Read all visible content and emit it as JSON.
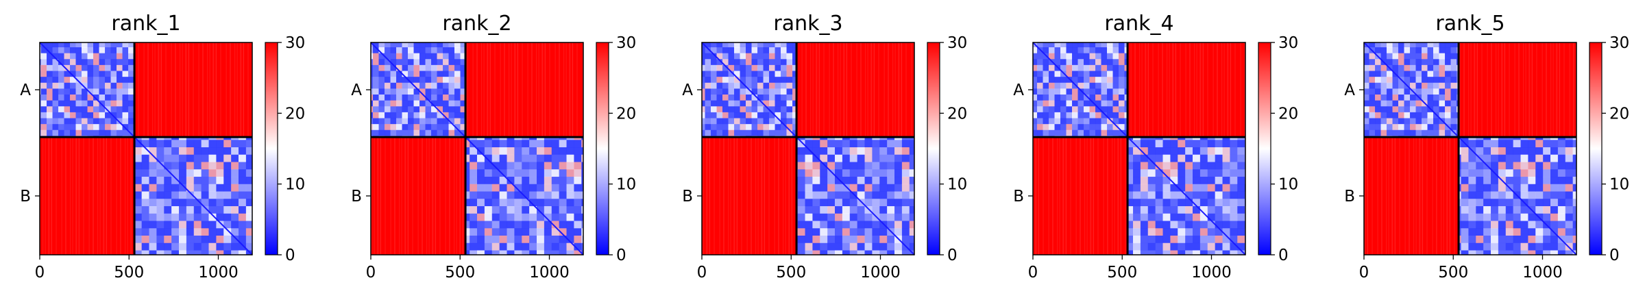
{
  "chart_data": [
    {
      "type": "heatmap",
      "title": "rank_1",
      "chains": [
        "A",
        "B"
      ],
      "chain_boundary": 530,
      "x_range": [
        0,
        1190
      ],
      "x_ticks": [
        0,
        500,
        1000
      ],
      "x_tick_labels": [
        "0",
        "500",
        "1000"
      ],
      "colorbar": {
        "min": 0,
        "max": 30,
        "ticks": [
          0,
          10,
          20,
          30
        ],
        "tick_labels": [
          "0",
          "10",
          "20",
          "30"
        ],
        "colormap": "bwr",
        "low_color": "#0000ff",
        "mid_color": "#ffffff",
        "high_color": "#ff0000"
      }
    },
    {
      "type": "heatmap",
      "title": "rank_2",
      "chains": [
        "A",
        "B"
      ],
      "chain_boundary": 530,
      "x_range": [
        0,
        1190
      ],
      "x_ticks": [
        0,
        500,
        1000
      ],
      "x_tick_labels": [
        "0",
        "500",
        "1000"
      ],
      "colorbar": {
        "min": 0,
        "max": 30,
        "ticks": [
          0,
          10,
          20,
          30
        ],
        "tick_labels": [
          "0",
          "10",
          "20",
          "30"
        ],
        "colormap": "bwr",
        "low_color": "#0000ff",
        "mid_color": "#ffffff",
        "high_color": "#ff0000"
      }
    },
    {
      "type": "heatmap",
      "title": "rank_3",
      "chains": [
        "A",
        "B"
      ],
      "chain_boundary": 530,
      "x_range": [
        0,
        1190
      ],
      "x_ticks": [
        0,
        500,
        1000
      ],
      "x_tick_labels": [
        "0",
        "500",
        "1000"
      ],
      "colorbar": {
        "min": 0,
        "max": 30,
        "ticks": [
          0,
          10,
          20,
          30
        ],
        "tick_labels": [
          "0",
          "10",
          "20",
          "30"
        ],
        "colormap": "bwr",
        "low_color": "#0000ff",
        "mid_color": "#ffffff",
        "high_color": "#ff0000"
      }
    },
    {
      "type": "heatmap",
      "title": "rank_4",
      "chains": [
        "A",
        "B"
      ],
      "chain_boundary": 530,
      "x_range": [
        0,
        1190
      ],
      "x_ticks": [
        0,
        500,
        1000
      ],
      "x_tick_labels": [
        "0",
        "500",
        "1000"
      ],
      "colorbar": {
        "min": 0,
        "max": 30,
        "ticks": [
          0,
          10,
          20,
          30
        ],
        "tick_labels": [
          "0",
          "10",
          "20",
          "30"
        ],
        "colormap": "bwr",
        "low_color": "#0000ff",
        "mid_color": "#ffffff",
        "high_color": "#ff0000"
      }
    },
    {
      "type": "heatmap",
      "title": "rank_5",
      "chains": [
        "A",
        "B"
      ],
      "chain_boundary": 530,
      "x_range": [
        0,
        1190
      ],
      "x_ticks": [
        0,
        500,
        1000
      ],
      "x_tick_labels": [
        "0",
        "500",
        "1000"
      ],
      "colorbar": {
        "min": 0,
        "max": 30,
        "ticks": [
          0,
          10,
          20,
          30
        ],
        "tick_labels": [
          "0",
          "10",
          "20",
          "30"
        ],
        "colormap": "bwr",
        "low_color": "#0000ff",
        "mid_color": "#ffffff",
        "high_color": "#ff0000"
      }
    }
  ]
}
